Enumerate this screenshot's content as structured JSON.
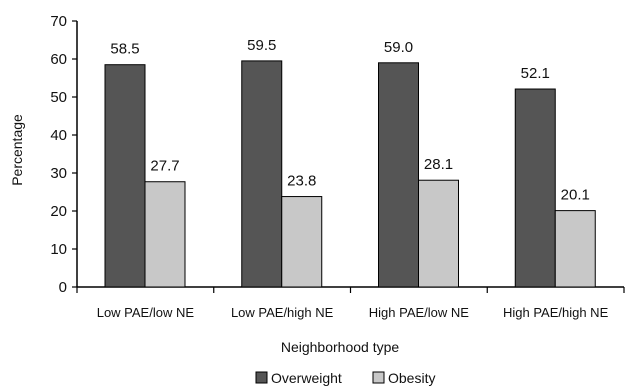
{
  "chart_data": {
    "type": "bar",
    "title": "",
    "xlabel": "Neighborhood type",
    "ylabel": "Percentage",
    "ylim": [
      0,
      70
    ],
    "yticks": [
      0,
      10,
      20,
      30,
      40,
      50,
      60,
      70
    ],
    "grid": false,
    "legend_position": "bottom",
    "categories": [
      "Low PAE/low NE",
      "Low PAE/high NE",
      "High PAE/low NE",
      "High PAE/high NE"
    ],
    "series": [
      {
        "name": "Overweight",
        "color": "#555555",
        "values": [
          58.5,
          59.5,
          59.0,
          52.1
        ],
        "labels": [
          "58.5",
          "59.5",
          "59.0",
          "52.1"
        ]
      },
      {
        "name": "Obesity",
        "color": "#c8c8c8",
        "values": [
          27.7,
          23.8,
          28.1,
          20.1
        ],
        "labels": [
          "27.7",
          "23.8",
          "28.1",
          "20.1"
        ]
      }
    ]
  }
}
